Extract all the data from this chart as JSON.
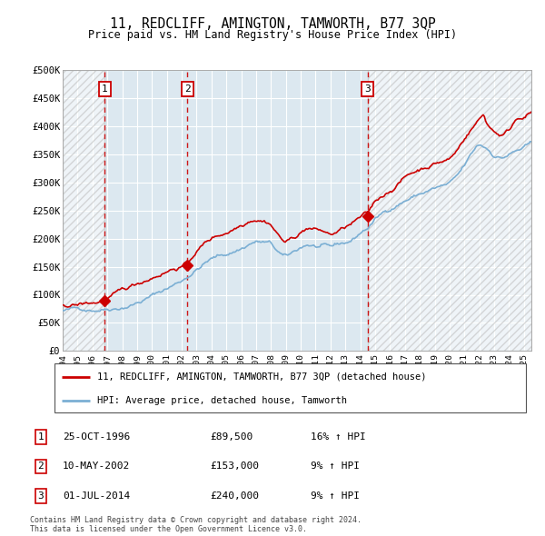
{
  "title": "11, REDCLIFF, AMINGTON, TAMWORTH, B77 3QP",
  "subtitle": "Price paid vs. HM Land Registry's House Price Index (HPI)",
  "ylim": [
    0,
    500000
  ],
  "yticks": [
    0,
    50000,
    100000,
    150000,
    200000,
    250000,
    300000,
    350000,
    400000,
    450000,
    500000
  ],
  "ytick_labels": [
    "£0",
    "£50K",
    "£100K",
    "£150K",
    "£200K",
    "£250K",
    "£300K",
    "£350K",
    "£400K",
    "£450K",
    "£500K"
  ],
  "sale_dates": [
    1996.82,
    2002.37,
    2014.5
  ],
  "sale_prices": [
    89500,
    153000,
    240000
  ],
  "sale_labels": [
    "1",
    "2",
    "3"
  ],
  "red_color": "#cc0000",
  "blue_color": "#7bafd4",
  "hatch_color": "#bbbbbb",
  "bg_chart": "#dce8f0",
  "grid_color": "#ffffff",
  "legend_line1": "11, REDCLIFF, AMINGTON, TAMWORTH, B77 3QP (detached house)",
  "legend_line2": "HPI: Average price, detached house, Tamworth",
  "table_data": [
    [
      "1",
      "25-OCT-1996",
      "£89,500",
      "16% ↑ HPI"
    ],
    [
      "2",
      "10-MAY-2002",
      "£153,000",
      "9% ↑ HPI"
    ],
    [
      "3",
      "01-JUL-2014",
      "£240,000",
      "9% ↑ HPI"
    ]
  ],
  "footer": "Contains HM Land Registry data © Crown copyright and database right 2024.\nThis data is licensed under the Open Government Licence v3.0.",
  "xmin": 1994.0,
  "xmax": 2025.5,
  "xticks": [
    1994,
    1995,
    1996,
    1997,
    1998,
    1999,
    2000,
    2001,
    2002,
    2003,
    2004,
    2005,
    2006,
    2007,
    2008,
    2009,
    2010,
    2011,
    2012,
    2013,
    2014,
    2015,
    2016,
    2017,
    2018,
    2019,
    2020,
    2021,
    2022,
    2023,
    2024,
    2025
  ]
}
